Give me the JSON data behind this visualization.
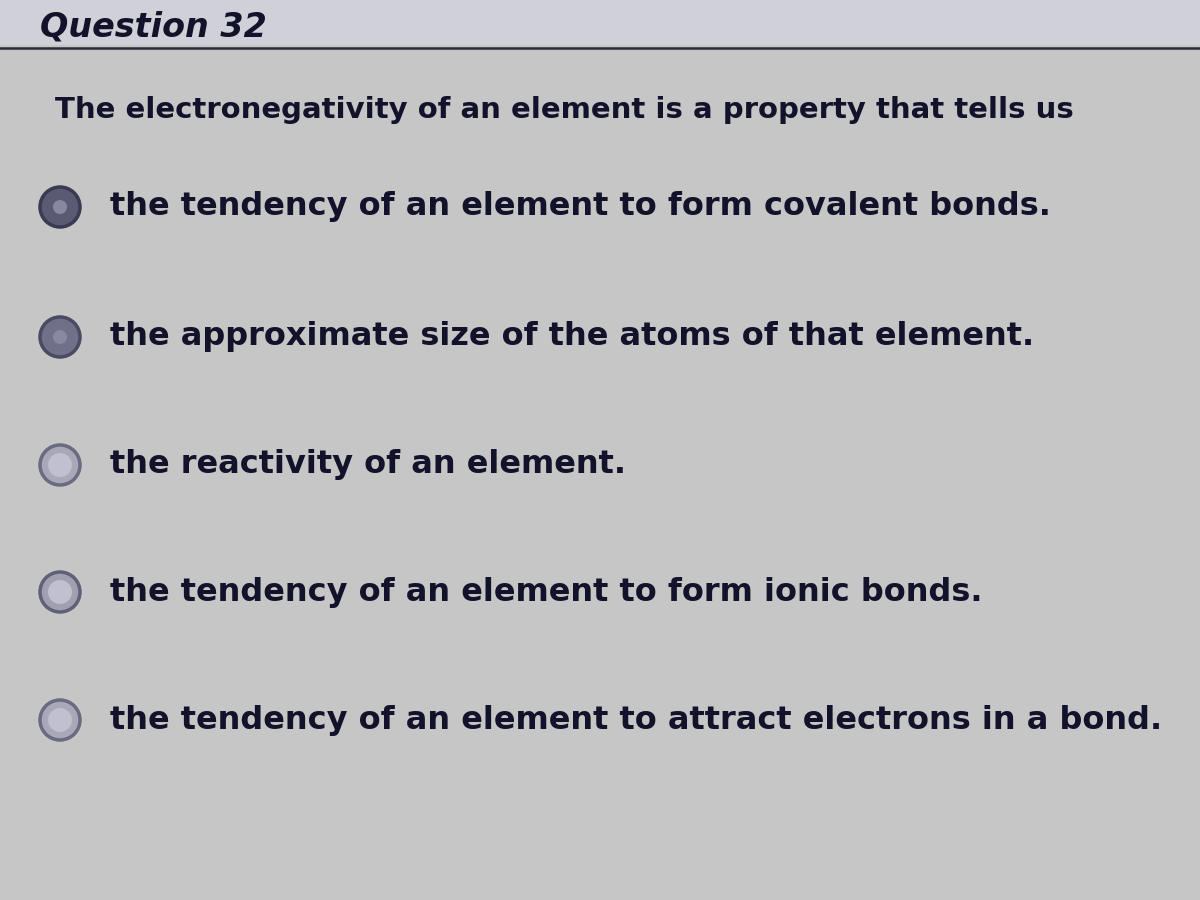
{
  "title": "Question 32",
  "question": "The electronegativity of an element is a property that tells us",
  "options": [
    "the tendency of an element to form covalent bonds.",
    "the approximate size of the atoms of that element.",
    "the reactivity of an element.",
    "the tendency of an element to form ionic bonds.",
    "the tendency of an element to attract electrons in a bond."
  ],
  "bg_color": "#c8c8c8",
  "header_bg": "#d0d0d8",
  "text_color": "#1a1a30",
  "title_color": "#12122a",
  "question_color": "#12122a",
  "option_color": "#12122a",
  "radio_outer_color": "#6a6a80",
  "radio_face_color": "#9090a8",
  "title_fontsize": 24,
  "question_fontsize": 21,
  "option_fontsize": 23,
  "line_color": "#2a2a3a",
  "scanline_alpha": 0.04
}
